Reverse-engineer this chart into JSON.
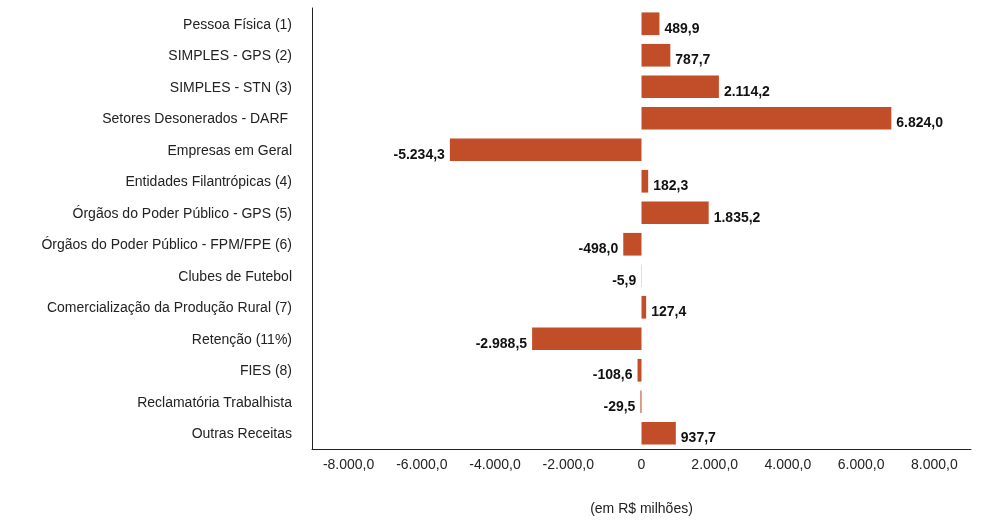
{
  "chart_data": {
    "type": "bar",
    "orientation": "horizontal",
    "xlabel": "(em R$ milhões)",
    "categories": [
      "Pessoa Física (1)",
      "SIMPLES - GPS (2)",
      "SIMPLES - STN (3)",
      "Setores Desonerados - DARF ",
      "Empresas em Geral",
      "Entidades Filantrópicas (4)",
      "Órgãos do Poder Público - GPS (5)",
      "Órgãos do Poder Público - FPM/FPE (6)",
      "Clubes de Futebol",
      "Comercialização da Produção Rural (7)",
      "Retenção (11%)",
      "FIES (8)",
      "Reclamatória Trabalhista",
      "Outras Receitas"
    ],
    "values": [
      489.9,
      787.7,
      2114.2,
      6824.0,
      -5234.3,
      182.3,
      1835.2,
      -498.0,
      -5.9,
      127.4,
      -2988.5,
      -108.6,
      -29.5,
      937.7
    ],
    "value_labels": [
      "489,9",
      "787,7",
      "2.114,2",
      "6.824,0",
      "-5.234,3",
      "182,3",
      "1.835,2",
      "-498,0",
      "-5,9",
      "127,4",
      "-2.988,5",
      "-108,6",
      "-29,5",
      "937,7"
    ],
    "color": "#c24e29",
    "xlim": [
      -9000,
      9000
    ],
    "xticks": [
      {
        "value": -8000,
        "label": "-8.000,0"
      },
      {
        "value": -6000,
        "label": "-6.000,0"
      },
      {
        "value": -4000,
        "label": "-4.000,0"
      },
      {
        "value": -2000,
        "label": "-2.000,0"
      },
      0,
      {
        "value": 2000,
        "label": "2.000,0"
      },
      {
        "value": 4000,
        "label": "4.000,0"
      },
      {
        "value": 6000,
        "label": "6.000,0"
      },
      {
        "value": 8000,
        "label": "8.000,0"
      }
    ],
    "grid": false
  }
}
